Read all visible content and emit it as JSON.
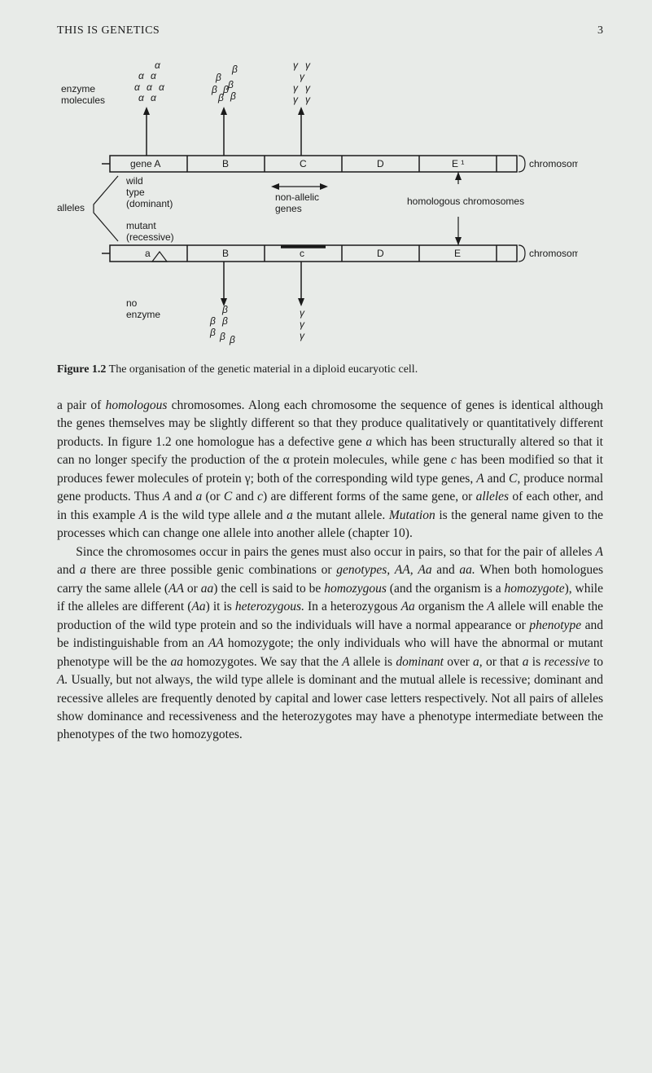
{
  "header": {
    "title": "THIS IS GENETICS",
    "pageNumber": "3"
  },
  "figure": {
    "captionPrefix": "Figure 1.2",
    "captionText": "The organisation of the genetic material in a diploid eucaryotic cell.",
    "labels": {
      "enzymeMolecules1": "enzyme",
      "enzymeMolecules2": "molecules",
      "alleles": "alleles",
      "wildType1": "wild",
      "wildType2": "type",
      "dominant": "(dominant)",
      "mutant": "mutant",
      "recessive": "(recessive)",
      "nonAllelic1": "non-allelic",
      "nonAllelic2": "genes",
      "homologous": "homologous chromosomes",
      "chromosome": "chromosome",
      "noEnzyme1": "no",
      "noEnzyme2": "enzyme",
      "geneA": "gene A",
      "B": "B",
      "C": "C",
      "D": "D",
      "E1": "E ¹",
      "a": "a",
      "c": "c",
      "E": "E"
    },
    "symbols": {
      "alpha": "α",
      "beta": "β",
      "gamma": "γ"
    },
    "colors": {
      "line": "#1a1a1a",
      "background": "#e8ebe8"
    }
  },
  "bodyText": {
    "para1Parts": [
      "a pair of ",
      "homologous",
      " chromosomes. Along each chromosome the sequence of genes is identical although the genes themselves may be slightly different so that they produce qualitatively or quantitatively different products. In figure 1.2 one homologue has a defective gene ",
      "a",
      " which has been structurally altered so that it can no longer specify the production of the α protein molecules, while gene ",
      "c",
      " has been modified so that it produces fewer molecules of protein γ; both of the corresponding wild type genes, ",
      "A",
      " and ",
      "C,",
      " produce normal gene products. Thus ",
      "A",
      " and ",
      "a",
      " (or ",
      "C",
      " and ",
      "c",
      ") are different forms of the same gene, or ",
      "alleles",
      " of each other, and in this example ",
      "A",
      " is the wild type allele and ",
      "a",
      " the mutant allele. ",
      "Mutation",
      " is the general name given to the processes which can change one allele into another allele (chapter 10)."
    ],
    "para2Parts": [
      "Since the chromosomes occur in pairs the genes must also occur in pairs, so that for the pair of alleles ",
      "A",
      " and ",
      "a",
      " there are three possible genic combinations or ",
      "genotypes,",
      " ",
      "AA,",
      " ",
      "Aa",
      " and ",
      "aa.",
      " When both homologues carry the same allele (",
      "AA",
      " or ",
      "aa",
      ") the cell is said to be ",
      "homozygous",
      " (and the organism is a ",
      "homozygote",
      "), while if the alleles are different (",
      "Aa",
      ") it is ",
      "heterozygous.",
      " In a heterozygous ",
      "Aa",
      " organism the ",
      "A",
      " allele will enable the production of the wild type protein and so the individuals will have a normal appearance or ",
      "phenotype",
      " and be indistinguishable from an ",
      "AA",
      " homozygote; the only individuals who will have the abnormal or mutant phenotype will be the ",
      "aa",
      " homozygotes. We say that the ",
      "A",
      " allele is ",
      "dominant",
      " over ",
      "a,",
      " or that ",
      "a",
      " is ",
      "recessive",
      " to ",
      "A.",
      " Usually, but not always, the wild type allele is dominant and the mutual allele is recessive; dominant and recessive alleles are frequently denoted by capital and lower case letters respectively. Not all pairs of alleles show dominance and recessiveness and the heterozygotes may have a phenotype intermediate between the phenotypes of the two homozygotes."
    ]
  }
}
